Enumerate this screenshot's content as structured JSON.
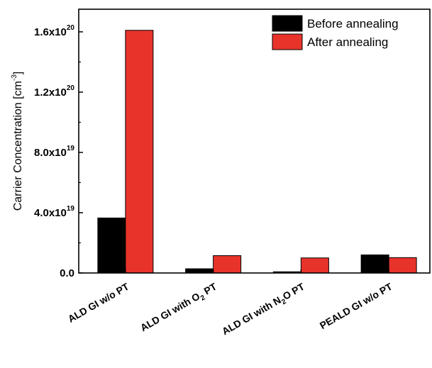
{
  "chart_data": {
    "type": "bar",
    "ylabel": "Carrier Concentration [cm",
    "ylabel_sup": "-3",
    "ylabel_end": "]",
    "ylim": [
      0,
      1.75e+20
    ],
    "yticks": [
      {
        "value": 0,
        "base": "0.0",
        "sup": ""
      },
      {
        "value": 4e+19,
        "base": "4.0x10",
        "sup": "19"
      },
      {
        "value": 8e+19,
        "base": "8.0x10",
        "sup": "19"
      },
      {
        "value": 1.2e+20,
        "base": "1.2x10",
        "sup": "20"
      },
      {
        "value": 1.6e+20,
        "base": "1.6x10",
        "sup": "20"
      }
    ],
    "categories": [
      {
        "pre": "ALD GI w/o PT",
        "sub": "",
        "post": ""
      },
      {
        "pre": "ALD GI with O",
        "sub": "2",
        "post": " PT"
      },
      {
        "pre": "ALD GI with N",
        "sub": "2",
        "post": "O PT"
      },
      {
        "pre": "PEALD GI w/o PT",
        "sub": "",
        "post": ""
      }
    ],
    "series": [
      {
        "name": "Before annealing",
        "color": "#000000",
        "values": [
          3.65e+19,
          2.8e+18,
          8e+17,
          1.2e+19
        ]
      },
      {
        "name": "After annealing",
        "color": "#e8332b",
        "values": [
          1.61e+20,
          1.15e+19,
          1e+19,
          1.02e+19
        ]
      }
    ],
    "legend_position": "top-right"
  }
}
